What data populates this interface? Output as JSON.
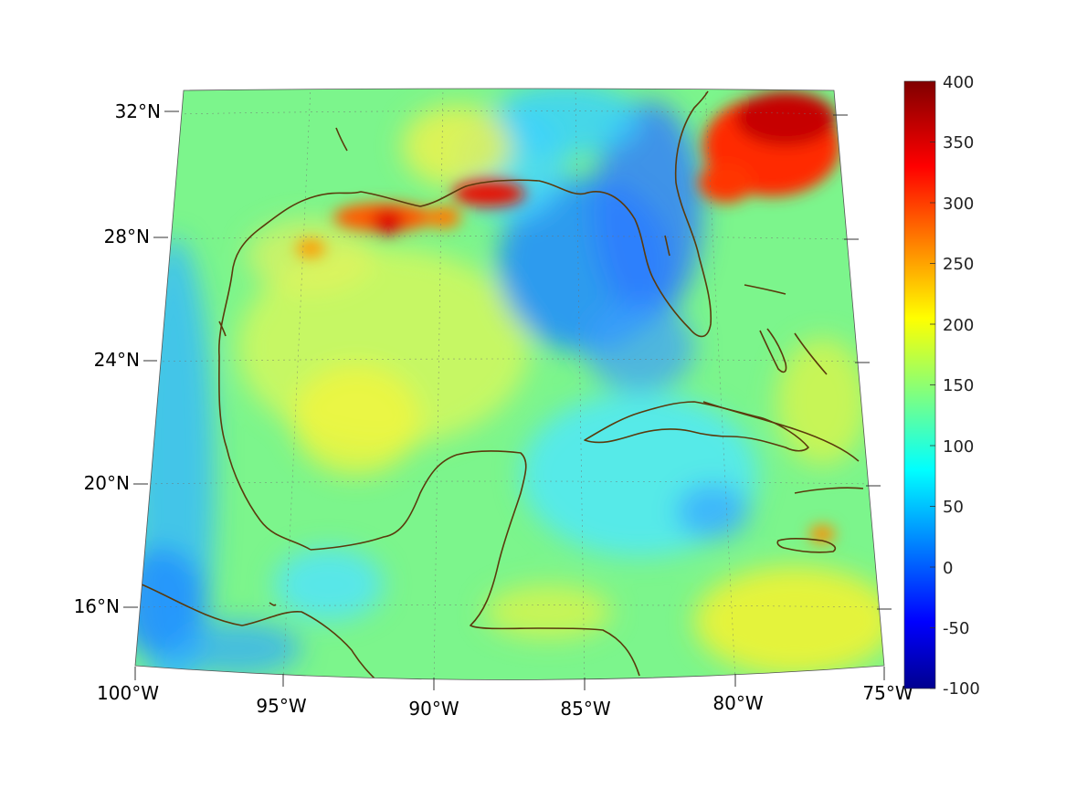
{
  "map": {
    "projection": "conic",
    "grid": true,
    "lat_ticks": [
      "32°N",
      "28°N",
      "24°N",
      "20°N",
      "16°N"
    ],
    "lon_ticks": [
      "100°W",
      "95°W",
      "90°W",
      "85°W",
      "80°W",
      "75°W"
    ],
    "field_colormap": "jet",
    "coastline_color": "#5a3a0c",
    "features": [
      {
        "name": "northern-gulf-coast-hotspot",
        "value": 320
      },
      {
        "name": "mississippi-delta-hotspot",
        "value": 330
      },
      {
        "name": "atlantic-northeast-hotspot",
        "value": 360
      },
      {
        "name": "eastern-gulf-low",
        "value": 20
      },
      {
        "name": "central-gulf",
        "value": 160
      }
    ]
  },
  "colorbar": {
    "colormap": "jet",
    "min": -100,
    "max": 400,
    "ticks": [
      "400",
      "350",
      "300",
      "250",
      "200",
      "150",
      "100",
      "50",
      "0",
      "-50",
      "-100"
    ]
  }
}
